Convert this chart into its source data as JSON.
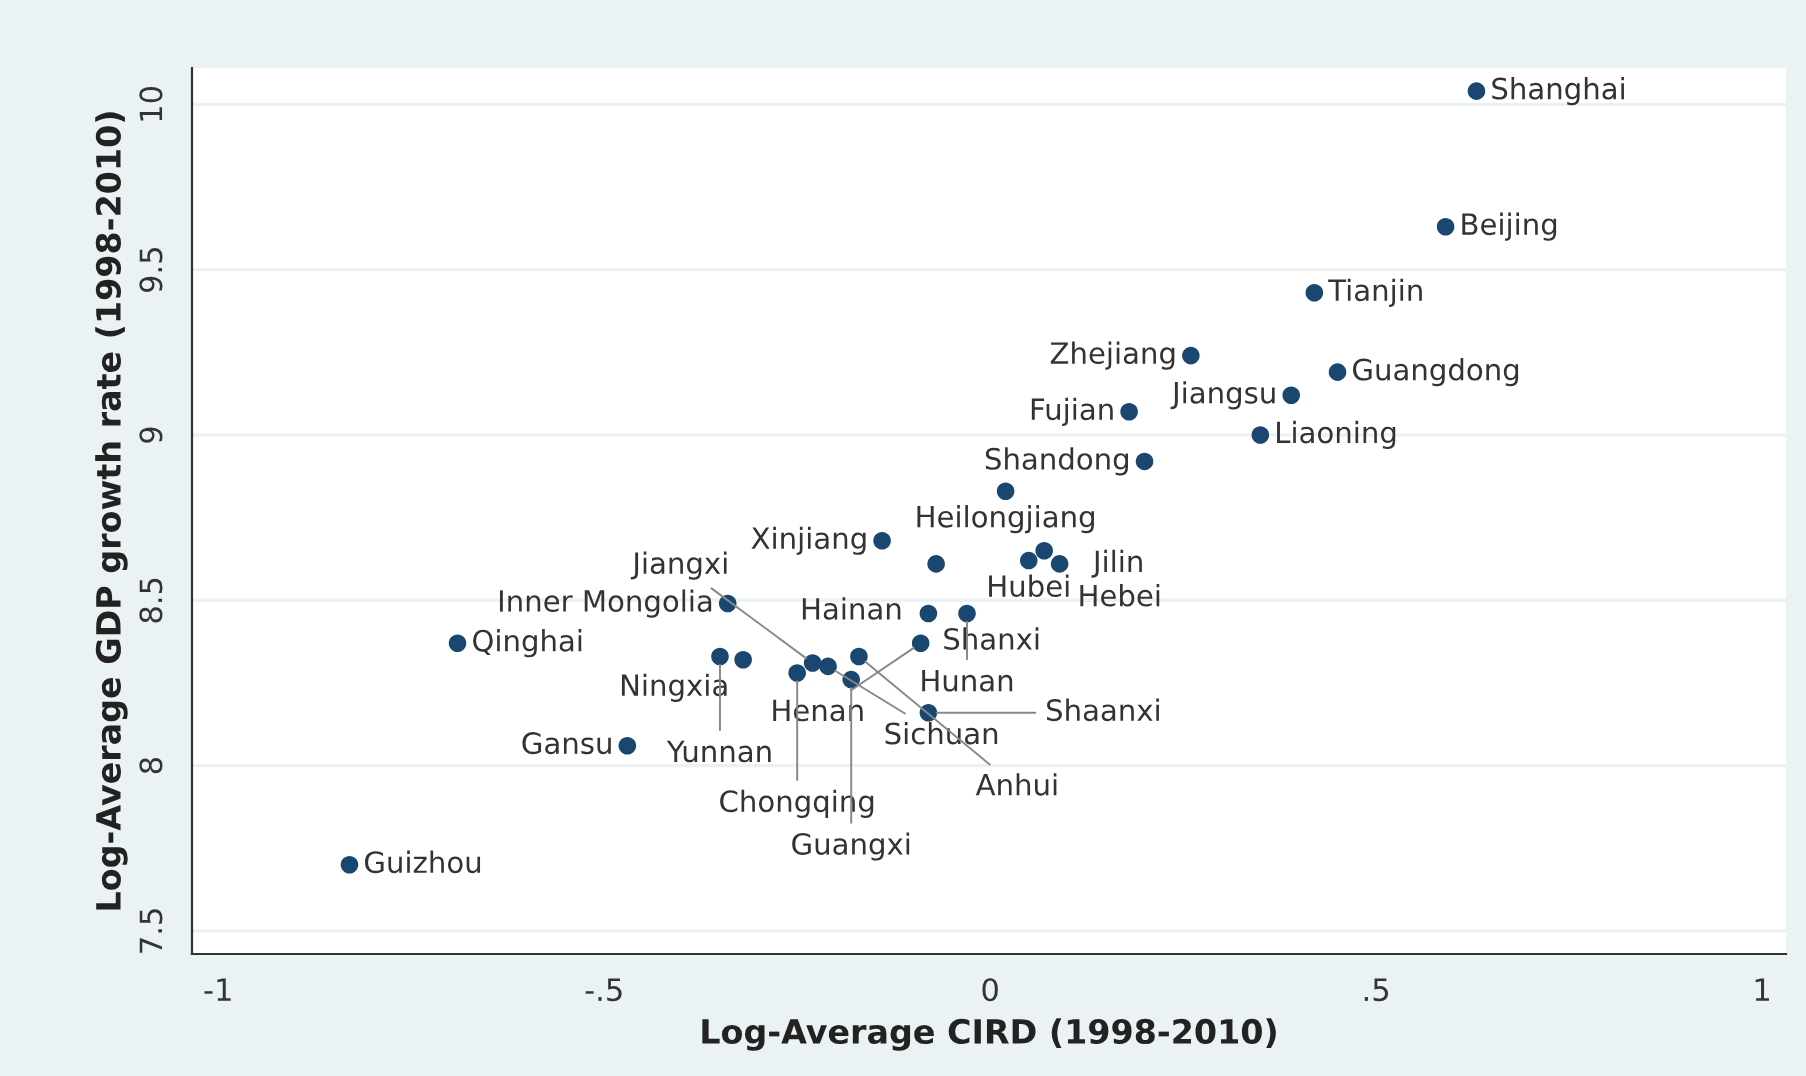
{
  "chart_data": {
    "type": "scatter",
    "xlabel": "Log-Average CIRD (1998-2010)",
    "ylabel": "Log-Average GDP growth rate (1998-2010)",
    "xlim": [
      -1.034,
      1.031
    ],
    "ylim": [
      7.43,
      10.11
    ],
    "xticks": [
      {
        "value": -1,
        "label": "-1"
      },
      {
        "value": -0.5,
        "label": "-.5"
      },
      0,
      {
        "value": 0.5,
        "label": ".5"
      },
      1
    ],
    "yticks": [
      7.5,
      8,
      8.5,
      9,
      9.5,
      10
    ],
    "grid": "y",
    "marker": "circle",
    "series": [
      {
        "color": "#1a476f",
        "x": [
          0.63,
          0.59,
          0.42,
          0.26,
          0.45,
          0.39,
          0.18,
          0.35,
          0.2,
          0.02,
          -0.14,
          -0.07,
          0.05,
          0.07,
          0.09,
          -0.34,
          -0.08,
          -0.03,
          -0.69,
          -0.09,
          -0.32,
          -0.35,
          -0.21,
          -0.25,
          -0.23,
          -0.17,
          -0.18,
          -0.08,
          -0.47,
          -0.83
        ],
        "values": [
          10.04,
          9.63,
          9.43,
          9.24,
          9.19,
          9.12,
          9.07,
          9.0,
          8.92,
          8.83,
          8.68,
          8.61,
          8.62,
          8.65,
          8.61,
          8.49,
          8.46,
          8.46,
          8.37,
          8.37,
          8.32,
          8.33,
          8.3,
          8.28,
          8.31,
          8.33,
          8.26,
          8.16,
          8.06,
          7.7
        ]
      }
    ],
    "annotations": [
      {
        "text": "Shanghai",
        "x": 0.63,
        "y": 10.04
      },
      {
        "text": "Beijing",
        "x": 0.59,
        "y": 9.63
      },
      {
        "text": "Tianjin",
        "x": 0.42,
        "y": 9.43
      },
      {
        "text": "Zhejiang",
        "x": 0.26,
        "y": 9.24
      },
      {
        "text": "Guangdong",
        "x": 0.45,
        "y": 9.19
      },
      {
        "text": "Jiangsu",
        "x": 0.39,
        "y": 9.12
      },
      {
        "text": "Fujian",
        "x": 0.18,
        "y": 9.07
      },
      {
        "text": "Liaoning",
        "x": 0.35,
        "y": 9.0
      },
      {
        "text": "Shandong",
        "x": 0.2,
        "y": 8.92
      },
      {
        "text": "Heilongjiang",
        "x": 0.02,
        "y": 8.83
      },
      {
        "text": "Xinjiang",
        "x": -0.14,
        "y": 8.68
      },
      {
        "text": "Hainan",
        "x": -0.07,
        "y": 8.61
      },
      {
        "text": "Hubei",
        "x": 0.05,
        "y": 8.62
      },
      {
        "text": "Hebei",
        "x": 0.07,
        "y": 8.65
      },
      {
        "text": "Jilin",
        "x": 0.09,
        "y": 8.61
      },
      {
        "text": "Inner Mongolia",
        "x": -0.34,
        "y": 8.49
      },
      {
        "text": "Shanxi",
        "x": -0.08,
        "y": 8.46
      },
      {
        "text": "Hunan",
        "x": -0.03,
        "y": 8.46
      },
      {
        "text": "Qinghai",
        "x": -0.69,
        "y": 8.37
      },
      {
        "text": "Henan",
        "x": -0.09,
        "y": 8.37
      },
      {
        "text": "Ningxia",
        "x": -0.32,
        "y": 8.32
      },
      {
        "text": "Yunnan",
        "x": -0.35,
        "y": 8.33
      },
      {
        "text": "Sichuan",
        "x": -0.21,
        "y": 8.3
      },
      {
        "text": "Chongqing",
        "x": -0.25,
        "y": 8.28
      },
      {
        "text": "Jiangxi",
        "x": -0.23,
        "y": 8.31
      },
      {
        "text": "Anhui",
        "x": -0.17,
        "y": 8.33
      },
      {
        "text": "Guangxi",
        "x": -0.18,
        "y": 8.26
      },
      {
        "text": "Shaanxi",
        "x": -0.08,
        "y": 8.16
      },
      {
        "text": "Gansu",
        "x": -0.47,
        "y": 8.06
      },
      {
        "text": "Guizhou",
        "x": -0.83,
        "y": 7.7
      }
    ]
  }
}
